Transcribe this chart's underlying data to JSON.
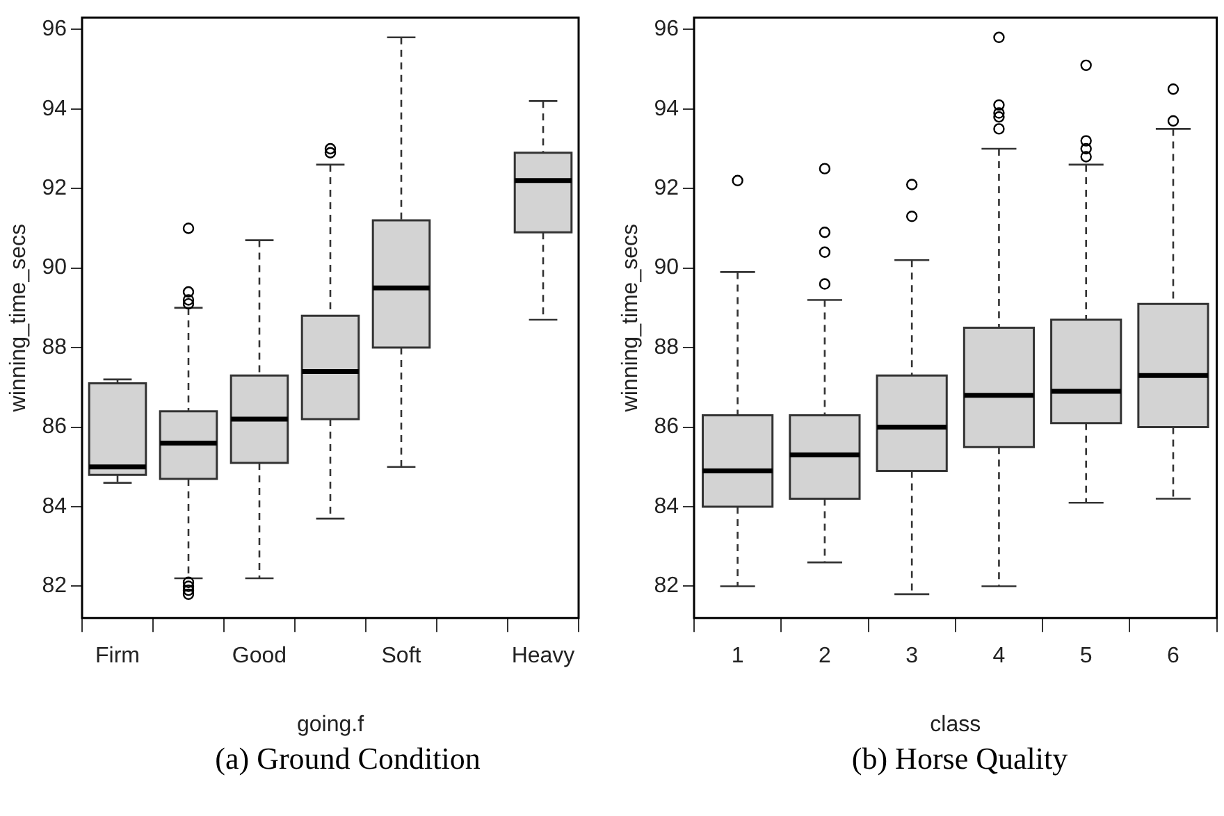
{
  "chart_data": [
    {
      "type": "box",
      "xlabel": "going.f",
      "ylabel": "winning_time_secs",
      "annotations": [
        "(a) Ground Condition"
      ],
      "categories": [
        "Firm",
        null,
        "Good",
        null,
        "Soft",
        null,
        "Heavy"
      ],
      "color": "#d3d3d3",
      "ylim": [
        81.2,
        96.3
      ],
      "yticks": [
        82,
        84,
        86,
        88,
        90,
        92,
        94,
        96
      ],
      "grid": false,
      "legend": false,
      "line_style": "dashed",
      "marker": "circle",
      "boxes": [
        {
          "low": 84.6,
          "q1": 84.8,
          "median": 85.0,
          "q3": 87.1,
          "high": 87.2
        },
        {
          "low": 82.2,
          "q1": 84.7,
          "median": 85.6,
          "q3": 86.4,
          "high": 89.0,
          "outliers": [
            91.0,
            89.4,
            89.2,
            89.1,
            82.1,
            82.0,
            81.9,
            81.8
          ]
        },
        {
          "low": 82.2,
          "q1": 85.1,
          "median": 86.2,
          "q3": 87.3,
          "high": 90.7
        },
        {
          "low": 83.7,
          "q1": 86.2,
          "median": 87.4,
          "q3": 88.8,
          "high": 92.6,
          "outliers": [
            93.0,
            92.9
          ]
        },
        {
          "low": 85.0,
          "q1": 88.0,
          "median": 89.5,
          "q3": 91.2,
          "high": 95.8
        },
        null,
        {
          "low": 88.7,
          "q1": 90.9,
          "median": 92.2,
          "q3": 92.9,
          "high": 94.2
        }
      ]
    },
    {
      "type": "box",
      "xlabel": "class",
      "ylabel": "winning_time_secs",
      "annotations": [
        "(b) Horse Quality"
      ],
      "categories": [
        "1",
        "2",
        "3",
        "4",
        "5",
        "6"
      ],
      "color": "#d3d3d3",
      "ylim": [
        81.2,
        96.3
      ],
      "yticks": [
        82,
        84,
        86,
        88,
        90,
        92,
        94,
        96
      ],
      "grid": false,
      "legend": false,
      "line_style": "dashed",
      "marker": "circle",
      "boxes": [
        {
          "low": 82.0,
          "q1": 84.0,
          "median": 84.9,
          "q3": 86.3,
          "high": 89.9,
          "outliers": [
            92.2
          ]
        },
        {
          "low": 82.6,
          "q1": 84.2,
          "median": 85.3,
          "q3": 86.3,
          "high": 89.2,
          "outliers": [
            92.5,
            90.9,
            90.4,
            89.6
          ]
        },
        {
          "low": 81.8,
          "q1": 84.9,
          "median": 86.0,
          "q3": 87.3,
          "high": 90.2,
          "outliers": [
            92.1,
            91.3
          ]
        },
        {
          "low": 82.0,
          "q1": 85.5,
          "median": 86.8,
          "q3": 88.5,
          "high": 93.0,
          "outliers": [
            95.8,
            94.1,
            93.9,
            93.8,
            93.5
          ]
        },
        {
          "low": 84.1,
          "q1": 86.1,
          "median": 86.9,
          "q3": 88.7,
          "high": 92.6,
          "outliers": [
            95.1,
            93.2,
            93.0,
            92.8
          ]
        },
        {
          "low": 84.2,
          "q1": 86.0,
          "median": 87.3,
          "q3": 89.1,
          "high": 93.5,
          "outliers": [
            94.5,
            93.7
          ]
        }
      ]
    }
  ]
}
